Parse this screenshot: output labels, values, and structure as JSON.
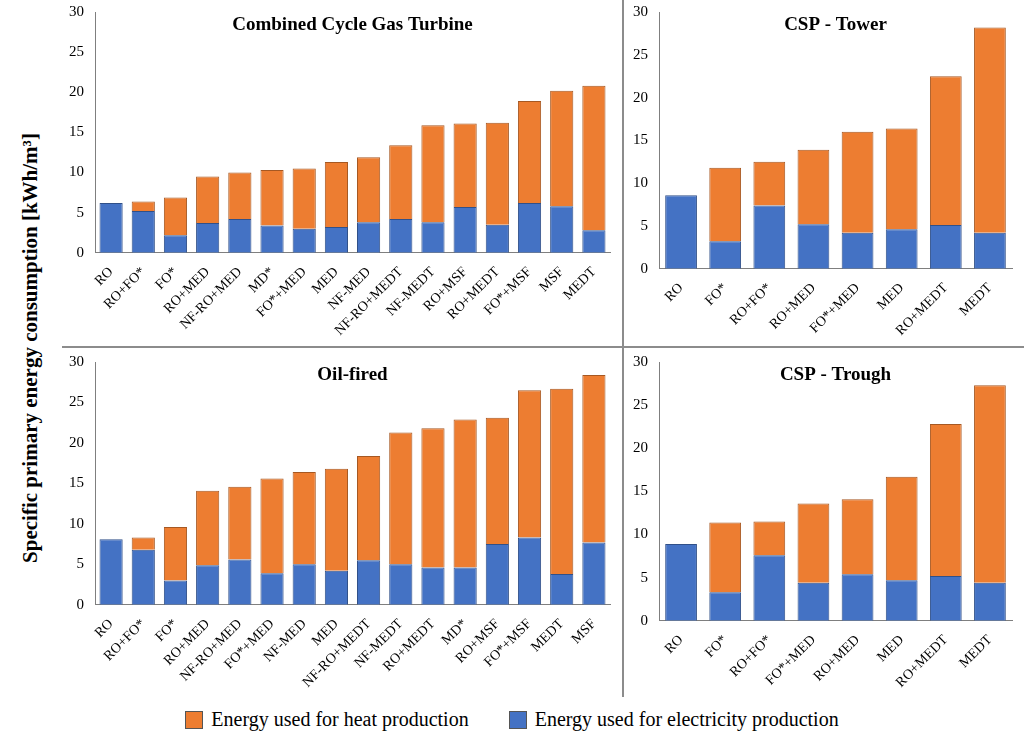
{
  "ylabel": "Specific primary energy consumption [kWh/m³]",
  "legend": "bottom",
  "chart_data": [
    {
      "type": "bar",
      "title": "Combined Cycle Gas Turbine",
      "categories": [
        "RO",
        "RO+FO*",
        "FO*",
        "RO+MED",
        "NF-RO+MED",
        "MD*",
        "FO*+MED",
        "MED",
        "NF-MED",
        "NF-RO+MEDT",
        "NF-MEDT",
        "RO+MSF",
        "RO+MEDT",
        "FO*+MSF",
        "MSF",
        "MEDT"
      ],
      "series": [
        {
          "name": "Energy used for heat production",
          "color": "#ED7D31",
          "values": [
            0,
            1.2,
            4.7,
            5.8,
            5.8,
            6.9,
            7.5,
            8.1,
            8.1,
            9.2,
            12.1,
            10.4,
            12.7,
            12.7,
            14.4,
            18.0
          ]
        },
        {
          "name": "Energy used for electricity production",
          "color": "#4472C4",
          "values": [
            6.2,
            5.2,
            2.2,
            3.7,
            4.2,
            3.4,
            3.0,
            3.2,
            3.8,
            4.2,
            3.8,
            5.7,
            3.5,
            6.2,
            5.8,
            2.8
          ]
        }
      ],
      "ylim": [
        0,
        30
      ],
      "yticks": [
        0,
        5,
        10,
        15,
        20,
        25,
        30
      ],
      "stacked": true,
      "grid": false
    },
    {
      "type": "bar",
      "title": "CSP - Tower",
      "categories": [
        "RO",
        "FO*",
        "RO+FO*",
        "RO+MED",
        "FO*+MED",
        "MED",
        "RO+MEDT",
        "MEDT"
      ],
      "series": [
        {
          "name": "Energy used for heat production",
          "color": "#ED7D31",
          "values": [
            0,
            8.6,
            5.1,
            8.7,
            11.8,
            11.8,
            17.4,
            24.0
          ]
        },
        {
          "name": "Energy used for electricity production",
          "color": "#4472C4",
          "values": [
            8.6,
            3.2,
            7.4,
            5.2,
            4.2,
            4.6,
            5.1,
            4.2
          ]
        }
      ],
      "ylim": [
        0,
        30
      ],
      "yticks": [
        0,
        5,
        10,
        15,
        20,
        25,
        30
      ],
      "stacked": true,
      "grid": false
    },
    {
      "type": "bar",
      "title": "Oil-fired",
      "categories": [
        "RO",
        "RO+FO*",
        "FO*",
        "RO+MED",
        "NF-RO+MED",
        "FO*+MED",
        "NF-MED",
        "MED",
        "NF-RO+MEDT",
        "NF-MEDT",
        "RO+MEDT",
        "MD*",
        "RO+MSF",
        "FO*+MSF",
        "MEDT",
        "MSF"
      ],
      "series": [
        {
          "name": "Energy used for heat production",
          "color": "#ED7D31",
          "values": [
            0,
            1.5,
            6.6,
            9.2,
            9.0,
            11.7,
            11.4,
            12.6,
            12.9,
            16.3,
            17.2,
            18.3,
            15.6,
            18.2,
            22.9,
            20.7
          ]
        },
        {
          "name": "Energy used for electricity production",
          "color": "#4472C4",
          "values": [
            8.1,
            6.8,
            3.0,
            4.9,
            5.6,
            3.9,
            5.0,
            4.2,
            5.5,
            5.0,
            4.6,
            4.6,
            7.5,
            8.3,
            3.8,
            7.7
          ]
        }
      ],
      "ylim": [
        0,
        30
      ],
      "yticks": [
        0,
        5,
        10,
        15,
        20,
        25,
        30
      ],
      "stacked": true,
      "grid": false
    },
    {
      "type": "bar",
      "title": "CSP - Trough",
      "categories": [
        "RO",
        "FO*",
        "RO+FO*",
        "FO*+MED",
        "RO+MED",
        "MED",
        "RO+MEDT",
        "MEDT"
      ],
      "series": [
        {
          "name": "Energy used for heat production",
          "color": "#ED7D31",
          "values": [
            0,
            8.1,
            3.9,
            9.2,
            8.7,
            12.0,
            17.6,
            22.9
          ]
        },
        {
          "name": "Energy used for electricity production",
          "color": "#4472C4",
          "values": [
            8.9,
            3.3,
            7.6,
            4.4,
            5.4,
            4.7,
            5.2,
            4.4
          ]
        }
      ],
      "ylim": [
        0,
        30
      ],
      "yticks": [
        0,
        5,
        10,
        15,
        20,
        25,
        30
      ],
      "stacked": true,
      "grid": false
    }
  ]
}
